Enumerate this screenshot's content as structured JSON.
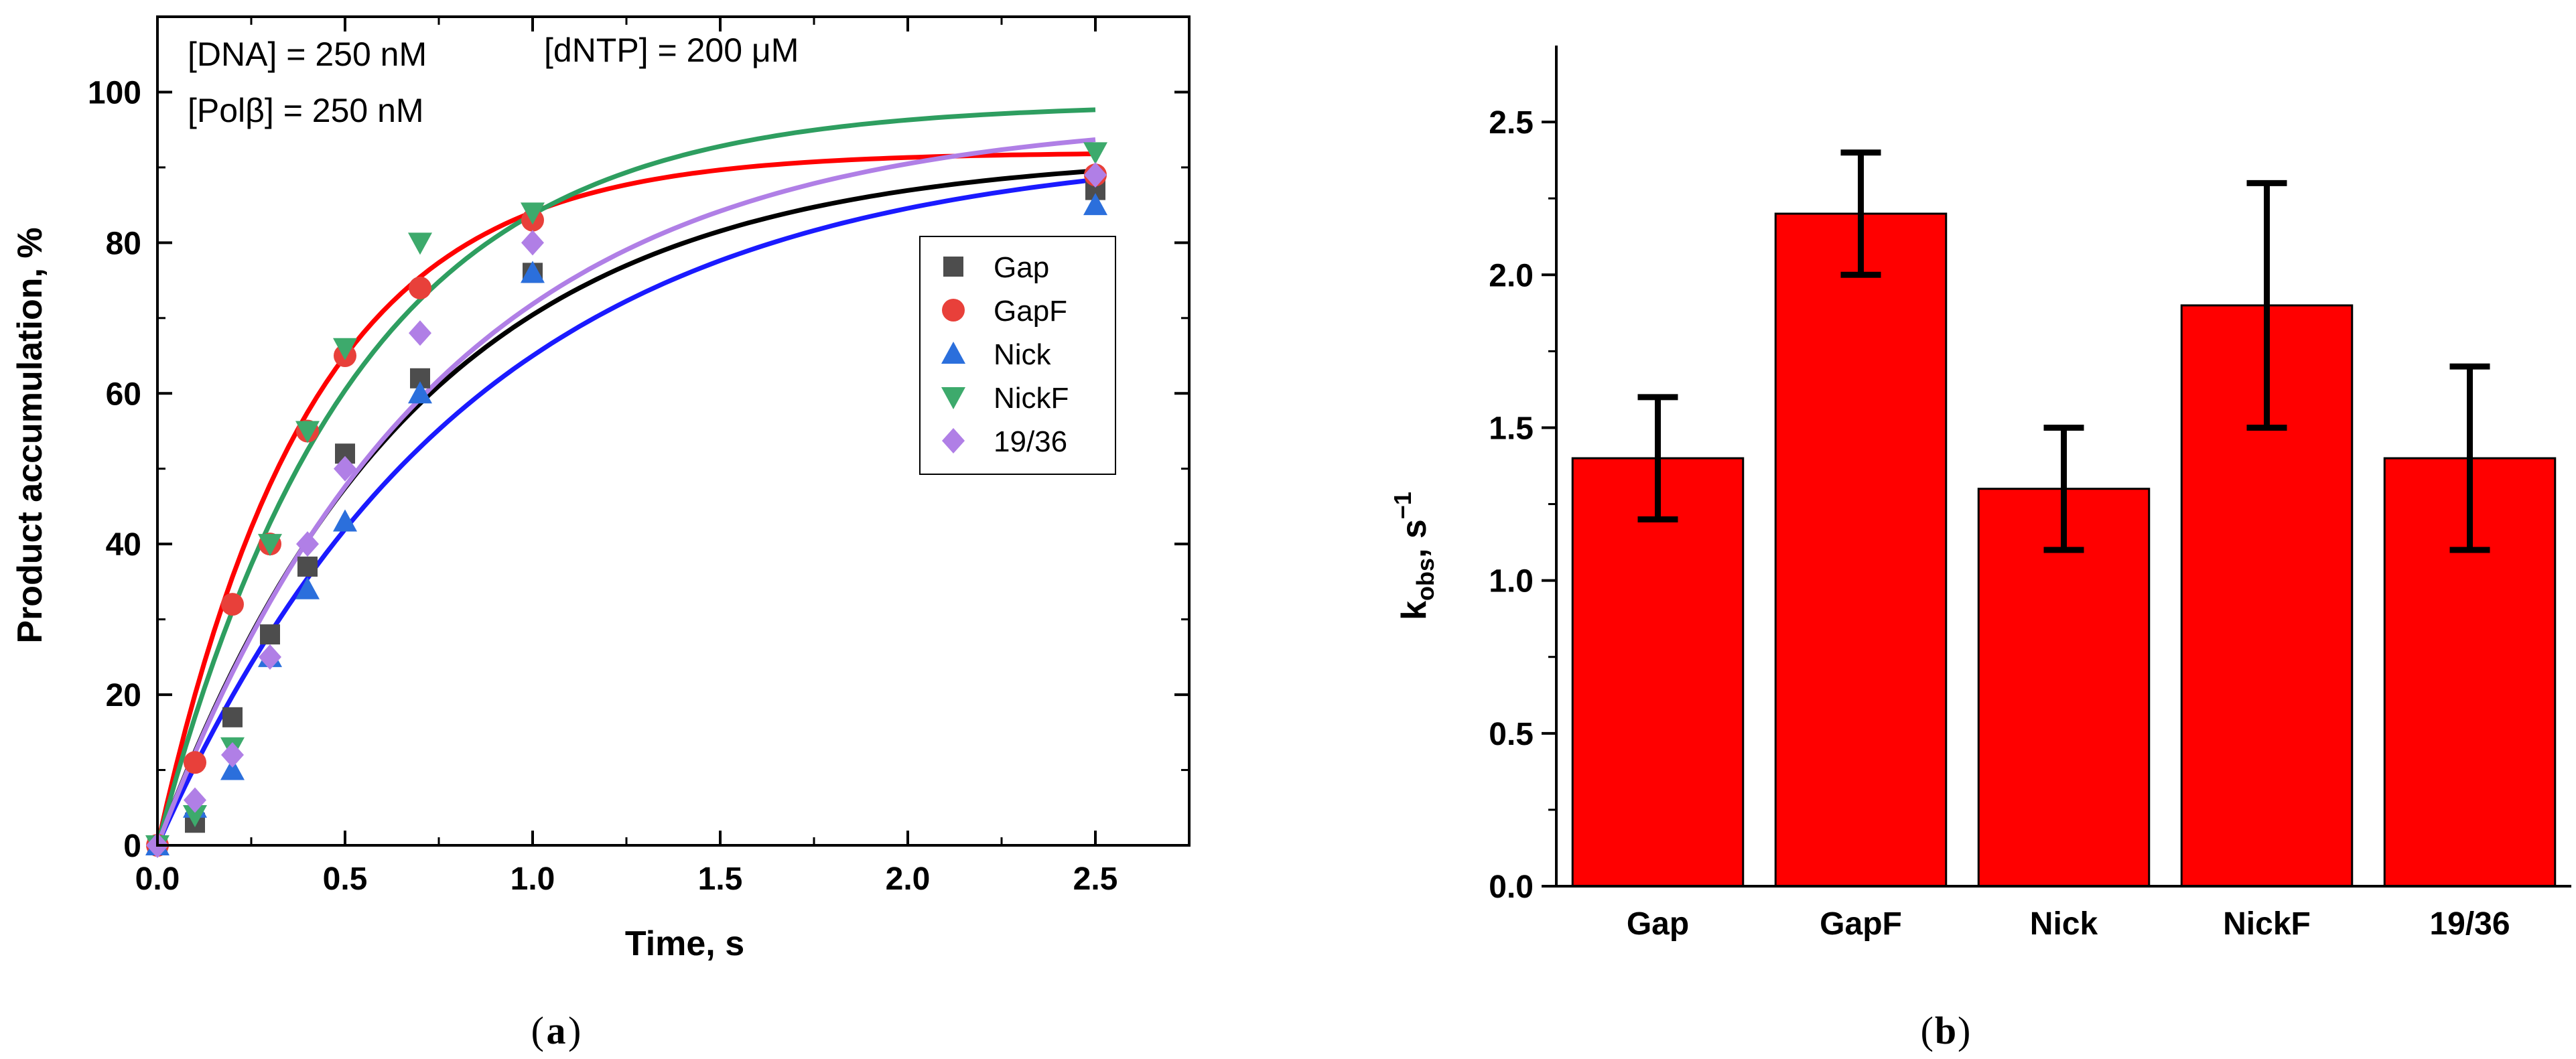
{
  "chart_data": [
    {
      "type": "scatter",
      "panel_label": "a",
      "xlabel": "Time, s",
      "ylabel": "Product accumulation, %",
      "xlim": [
        0,
        2.75
      ],
      "ylim": [
        0,
        110
      ],
      "xticks": [
        "0.0",
        "0.5",
        "1.0",
        "1.5",
        "2.0",
        "2.5"
      ],
      "yticks": [
        "0",
        "20",
        "40",
        "60",
        "80",
        "100"
      ],
      "annotations": {
        "dna": "[DNA] = 250 nM",
        "polb": "[Polβ] = 250 nM",
        "dntp": "[dNTP] = 200 μM"
      },
      "legend_position": "center-right",
      "series": [
        {
          "name": "Gap",
          "marker": "square",
          "color": "#4d4d4d",
          "fit_color": "#000000",
          "fit_plateau": 92,
          "fit_k": 1.45,
          "x": [
            0,
            0.1,
            0.2,
            0.3,
            0.4,
            0.5,
            0.7,
            1.0,
            2.5
          ],
          "y": [
            0,
            3,
            17,
            28,
            37,
            52,
            62,
            76,
            87
          ]
        },
        {
          "name": "GapF",
          "marker": "circle",
          "color": "#e8403a",
          "fit_color": "#ff0000",
          "fit_plateau": 92,
          "fit_k": 2.45,
          "x": [
            0,
            0.1,
            0.2,
            0.3,
            0.4,
            0.5,
            0.7,
            1.0,
            2.5
          ],
          "y": [
            0,
            11,
            32,
            40,
            55,
            65,
            74,
            83,
            89
          ]
        },
        {
          "name": "Nick",
          "marker": "triangle-up",
          "color": "#2b6fdc",
          "fit_color": "#1a1aff",
          "fit_plateau": 93,
          "fit_k": 1.2,
          "x": [
            0,
            0.1,
            0.2,
            0.3,
            0.4,
            0.5,
            0.7,
            1.0,
            2.5
          ],
          "y": [
            0,
            5,
            10,
            25,
            34,
            43,
            60,
            76,
            85
          ]
        },
        {
          "name": "NickF",
          "marker": "triangle-down",
          "color": "#3daa6c",
          "fit_color": "#2e9e60",
          "fit_plateau": 98.5,
          "fit_k": 1.9,
          "x": [
            0,
            0.1,
            0.2,
            0.3,
            0.4,
            0.5,
            0.7,
            1.0,
            2.5
          ],
          "y": [
            0,
            4,
            13,
            40,
            55,
            66,
            80,
            84,
            92
          ]
        },
        {
          "name": "19/36",
          "marker": "diamond",
          "color": "#b07fe6",
          "fit_color": "#b07fe6",
          "fit_plateau": 97,
          "fit_k": 1.35,
          "x": [
            0,
            0.1,
            0.2,
            0.3,
            0.4,
            0.5,
            0.7,
            1.0,
            2.5
          ],
          "y": [
            0,
            6,
            12,
            25,
            40,
            50,
            68,
            80,
            89
          ]
        }
      ]
    },
    {
      "type": "bar",
      "panel_label": "b",
      "xlabel": "",
      "ylabel_main": "k",
      "ylabel_sub": "obs",
      "ylabel_tail": ", s",
      "ylabel_sup": "−1",
      "ylim": [
        0,
        2.75
      ],
      "yticks": [
        "0.0",
        "0.5",
        "1.0",
        "1.5",
        "2.0",
        "2.5"
      ],
      "bar_color": "#ff0000",
      "categories": [
        "Gap",
        "GapF",
        "Nick",
        "NickF",
        "19/36"
      ],
      "values": [
        1.4,
        2.2,
        1.3,
        1.9,
        1.4
      ],
      "errors": [
        0.2,
        0.2,
        0.2,
        0.4,
        0.3
      ]
    }
  ]
}
